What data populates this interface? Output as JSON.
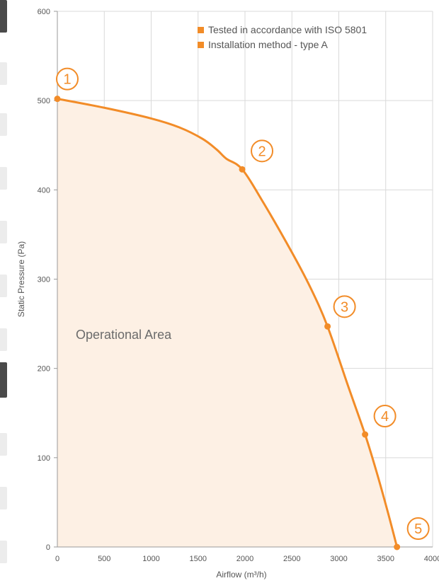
{
  "chart_data": {
    "type": "area",
    "xlabel": "Airflow (m³/h)",
    "ylabel": "Static Pressure (Pa)",
    "xlim": [
      0,
      4000
    ],
    "ylim": [
      0,
      600
    ],
    "x_ticks": [
      0,
      500,
      1000,
      1500,
      2000,
      2500,
      3000,
      3500,
      4000
    ],
    "y_ticks": [
      0,
      100,
      200,
      300,
      400,
      500,
      600
    ],
    "grid": true,
    "legend_position": "top-right",
    "legend": [
      "Tested in accordance with ISO 5801",
      "Installation method - type A"
    ],
    "area_label": "Operational Area",
    "series": [
      {
        "x": [
          0,
          500,
          1000,
          1300,
          1550,
          1700,
          1800,
          1970,
          2200,
          2500,
          2700,
          2880,
          3100,
          3280,
          3400,
          3520,
          3620
        ],
        "y": [
          502,
          492,
          480,
          470,
          457,
          445,
          435,
          423,
          385,
          330,
          290,
          247,
          180,
          126,
          85,
          40,
          0
        ]
      }
    ],
    "points": [
      {
        "label": "1",
        "x": 0,
        "y": 502
      },
      {
        "label": "2",
        "x": 1970,
        "y": 423
      },
      {
        "label": "3",
        "x": 2880,
        "y": 247
      },
      {
        "label": "4",
        "x": 3280,
        "y": 126
      },
      {
        "label": "5",
        "x": 3620,
        "y": 0
      }
    ]
  },
  "colors": {
    "accent": "#f28c28",
    "fill": "#fdf0e4",
    "grid": "#d9d9d9",
    "text": "#555555",
    "area_text": "#6b6b6b"
  }
}
